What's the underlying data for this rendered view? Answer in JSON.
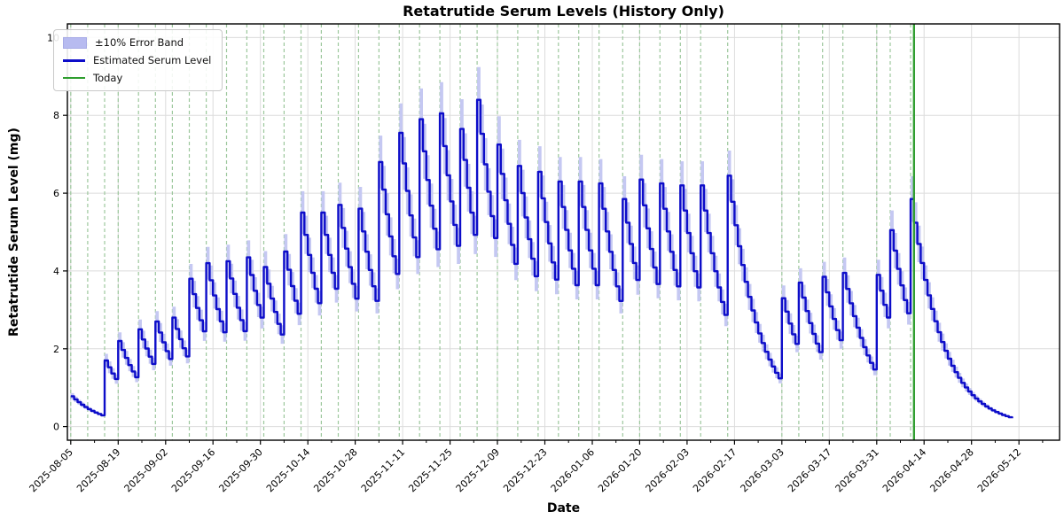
{
  "title": "Retatrutide Serum Levels (History Only)",
  "axes": {
    "xlabel": "Date",
    "ylabel": "Retatrutide Serum Level (mg)",
    "x_tick_labels": [
      "2025-08-05",
      "2025-08-19",
      "2025-09-02",
      "2025-09-16",
      "2025-09-30",
      "2025-10-14",
      "2025-10-28",
      "2025-11-11",
      "2025-11-25",
      "2025-12-09",
      "2025-12-23",
      "2026-01-06",
      "2026-01-20",
      "2026-02-03",
      "2026-02-17",
      "2026-03-03",
      "2026-03-17",
      "2026-03-31",
      "2026-04-14",
      "2026-04-28",
      "2026-05-12"
    ],
    "x_major_tick_interval_days": 14,
    "x_minor_tick_interval_days": 7,
    "y_ticks": [
      0,
      2,
      4,
      6,
      8,
      10
    ],
    "ylim": [
      -0.35,
      10.35
    ],
    "xlim_days_from_first_tick": [
      -1,
      292
    ],
    "grid": true
  },
  "legend": {
    "items": [
      {
        "label": "±10% Error Band",
        "kind": "band"
      },
      {
        "label": "Estimated Serum Level",
        "kind": "line"
      },
      {
        "label": "Today",
        "kind": "today"
      }
    ]
  },
  "colors": {
    "serum_line": "#0d0dc9",
    "band_fill": "#c5c8f2",
    "legend_band_swatch": "#b7bbf0",
    "dose_line": "#9cc79c",
    "today_line": "#2f9e2f",
    "grid": "#dcdcdc",
    "spine": "#000000"
  },
  "chart_data": {
    "type": "line",
    "series_name": "Estimated Serum Level",
    "band_pct": 10,
    "sampling": "daily",
    "unit": "mg",
    "start": {
      "date": "2025-08-05",
      "level": 0.78
    },
    "end_date": "2026-05-10",
    "end_level": 0.21,
    "half_life_days": 6.3,
    "today": "2026-04-11",
    "extra_marker_dates": [
      "2025-08-05",
      "2025-08-10"
    ],
    "doses": [
      {
        "date": "2025-08-15",
        "peak": 1.7
      },
      {
        "date": "2025-08-19",
        "peak": 2.2
      },
      {
        "date": "2025-08-25",
        "peak": 2.5
      },
      {
        "date": "2025-08-30",
        "peak": 2.7
      },
      {
        "date": "2025-09-04",
        "peak": 2.8
      },
      {
        "date": "2025-09-09",
        "peak": 3.8
      },
      {
        "date": "2025-09-14",
        "peak": 4.2
      },
      {
        "date": "2025-09-20",
        "peak": 4.25
      },
      {
        "date": "2025-09-26",
        "peak": 4.35
      },
      {
        "date": "2025-10-01",
        "peak": 4.1
      },
      {
        "date": "2025-10-07",
        "peak": 4.5
      },
      {
        "date": "2025-10-12",
        "peak": 5.5
      },
      {
        "date": "2025-10-18",
        "peak": 5.5
      },
      {
        "date": "2025-10-23",
        "peak": 5.7
      },
      {
        "date": "2025-10-29",
        "peak": 5.6
      },
      {
        "date": "2025-11-04",
        "peak": 6.8
      },
      {
        "date": "2025-11-10",
        "peak": 7.55
      },
      {
        "date": "2025-11-16",
        "peak": 7.9
      },
      {
        "date": "2025-11-22",
        "peak": 8.05
      },
      {
        "date": "2025-11-28",
        "peak": 7.65
      },
      {
        "date": "2025-12-03",
        "peak": 8.4
      },
      {
        "date": "2025-12-09",
        "peak": 7.25
      },
      {
        "date": "2025-12-15",
        "peak": 6.7
      },
      {
        "date": "2025-12-21",
        "peak": 6.55
      },
      {
        "date": "2025-12-27",
        "peak": 6.3
      },
      {
        "date": "2026-01-02",
        "peak": 6.3
      },
      {
        "date": "2026-01-08",
        "peak": 6.25
      },
      {
        "date": "2026-01-15",
        "peak": 5.85
      },
      {
        "date": "2026-01-20",
        "peak": 6.35
      },
      {
        "date": "2026-01-26",
        "peak": 6.25
      },
      {
        "date": "2026-02-01",
        "peak": 6.2
      },
      {
        "date": "2026-02-07",
        "peak": 6.2
      },
      {
        "date": "2026-02-15",
        "peak": 6.45
      },
      {
        "date": "2026-03-03",
        "peak": 3.3
      },
      {
        "date": "2026-03-08",
        "peak": 3.7
      },
      {
        "date": "2026-03-15",
        "peak": 3.85
      },
      {
        "date": "2026-03-21",
        "peak": 3.95
      },
      {
        "date": "2026-03-31",
        "peak": 3.9
      },
      {
        "date": "2026-04-04",
        "peak": 5.05
      },
      {
        "date": "2026-04-10",
        "peak": 5.85
      }
    ]
  }
}
